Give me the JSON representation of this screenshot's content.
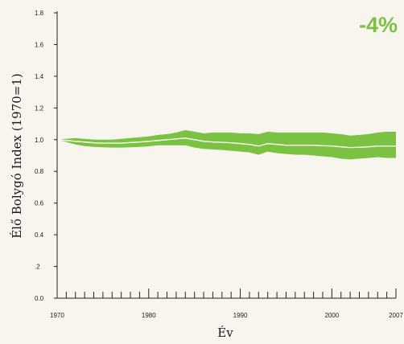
{
  "chart_data": {
    "type": "area",
    "xlabel": "Év",
    "ylabel": "Élő Bolygó Index (1970=1)",
    "xlim": [
      1970,
      2007
    ],
    "ylim": [
      0,
      1.8
    ],
    "x_ticks": [
      1970,
      1980,
      1990,
      2000,
      2007
    ],
    "y_ticks": [
      "0.0",
      ".2",
      "0.4",
      "0.6",
      "0.8",
      "1.0",
      "1.2",
      "1.4",
      "1.6",
      "1.8"
    ],
    "annotation": "-4%",
    "grid": false,
    "colors": {
      "band": "#7cc242",
      "line": "#ffffff",
      "axis": "#222222",
      "annotation": "#7cc242",
      "background": "#f8f5ee"
    },
    "x": [
      1970,
      1971,
      1972,
      1973,
      1974,
      1975,
      1976,
      1977,
      1978,
      1979,
      1980,
      1981,
      1982,
      1983,
      1984,
      1985,
      1986,
      1987,
      1988,
      1989,
      1990,
      1991,
      1992,
      1993,
      1994,
      1995,
      1996,
      1997,
      1998,
      1999,
      2000,
      2001,
      2002,
      2003,
      2004,
      2005,
      2006,
      2007
    ],
    "series": [
      {
        "values": [
          1.0,
          0.995,
          0.99,
          0.985,
          0.98,
          0.978,
          0.978,
          0.978,
          0.982,
          0.985,
          0.99,
          0.995,
          1.0,
          1.005,
          1.01,
          1.0,
          0.99,
          0.985,
          0.983,
          0.98,
          0.975,
          0.97,
          0.96,
          0.975,
          0.97,
          0.965,
          0.965,
          0.965,
          0.965,
          0.962,
          0.96,
          0.955,
          0.95,
          0.952,
          0.955,
          0.96,
          0.96,
          0.96
        ],
        "lower": [
          1.0,
          0.985,
          0.97,
          0.96,
          0.955,
          0.952,
          0.95,
          0.95,
          0.952,
          0.955,
          0.958,
          0.965,
          0.965,
          0.965,
          0.965,
          0.95,
          0.942,
          0.938,
          0.935,
          0.93,
          0.925,
          0.92,
          0.905,
          0.925,
          0.915,
          0.91,
          0.905,
          0.905,
          0.9,
          0.895,
          0.89,
          0.88,
          0.875,
          0.88,
          0.885,
          0.89,
          0.885,
          0.885
        ],
        "upper": [
          1.0,
          1.005,
          1.01,
          1.005,
          1.0,
          1.0,
          1.0,
          1.005,
          1.01,
          1.015,
          1.02,
          1.03,
          1.035,
          1.045,
          1.06,
          1.05,
          1.04,
          1.045,
          1.045,
          1.045,
          1.04,
          1.04,
          1.035,
          1.05,
          1.045,
          1.045,
          1.045,
          1.045,
          1.045,
          1.045,
          1.04,
          1.035,
          1.025,
          1.03,
          1.035,
          1.045,
          1.05,
          1.05
        ]
      }
    ]
  }
}
